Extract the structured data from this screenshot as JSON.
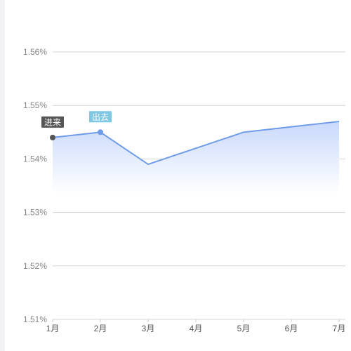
{
  "chart_data": {
    "type": "area",
    "categories": [
      "1月",
      "2月",
      "3月",
      "4月",
      "5月",
      "6月",
      "7月"
    ],
    "series": [
      {
        "values": [
          1.544,
          1.545,
          1.539,
          1.542,
          1.545,
          1.546,
          1.547
        ],
        "color": "#6f9be8"
      }
    ],
    "y_ticks": [
      "1.51%",
      "1.52%",
      "1.53%",
      "1.54%",
      "1.55%",
      "1.56%"
    ],
    "ylim": [
      1.51,
      1.56
    ],
    "grid": true,
    "annotations": [
      {
        "label": "进来",
        "category": "1月",
        "value": 1.544,
        "color": "#555555"
      },
      {
        "label": "出去",
        "category": "2月",
        "value": 1.545,
        "color": "#7ec8e3"
      }
    ],
    "area_gradient": [
      "#c9d9fb",
      "#ffffff"
    ]
  }
}
